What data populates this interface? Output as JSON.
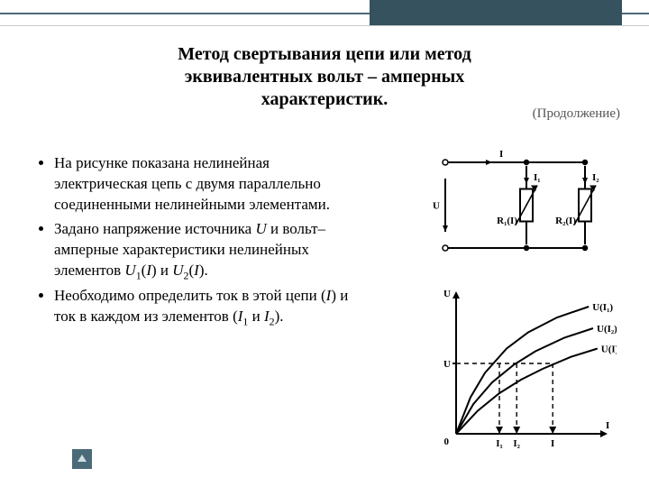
{
  "title_lines": [
    "Метод свертывания цепи или метод",
    "эквивалентных вольт – амперных",
    "характеристик."
  ],
  "continuation": "(Продолжение)",
  "bullets": [
    "На рисунке показана нелинейная электрическая цепь с двумя параллельно соединенными нелинейными элементами.",
    "Задано напряжение источника <i>U</i> и вольт–амперные характеристики нелинейных элементов <i>U</i><sub>1</sub>(<i>I</i>) и <i>U</i><sub>2</sub>(<i>I</i>).",
    "Необходимо определить ток в этой цепи (<i>I</i>) и ток в каждом из элементов (<i>I</i><sub>1</sub>   и   <i>I</i><sub>2</sub>)."
  ],
  "circuit": {
    "labels": {
      "I": "I",
      "I1": "I₁",
      "I2": "I₂",
      "U": "U",
      "R1": "R₁(I)",
      "R2": "R₂(I)"
    },
    "style": {
      "stroke": "#000000",
      "stroke_width": 2,
      "terminal_radius": 3
    }
  },
  "chart": {
    "axis": {
      "x_label": "I",
      "y_label": "U",
      "origin_label": "0"
    },
    "U_level": 0.52,
    "curves": [
      {
        "name": "U(I1)",
        "label": "U(I₁)",
        "points": [
          [
            0,
            0
          ],
          [
            0.1,
            0.27
          ],
          [
            0.2,
            0.45
          ],
          [
            0.35,
            0.63
          ],
          [
            0.5,
            0.75
          ],
          [
            0.7,
            0.86
          ],
          [
            0.92,
            0.94
          ]
        ],
        "I_at_U": 0.3
      },
      {
        "name": "U(I2)",
        "label": "U(I₂)",
        "points": [
          [
            0,
            0
          ],
          [
            0.12,
            0.22
          ],
          [
            0.25,
            0.38
          ],
          [
            0.4,
            0.51
          ],
          [
            0.55,
            0.61
          ],
          [
            0.75,
            0.71
          ],
          [
            0.95,
            0.78
          ]
        ],
        "I_at_U": 0.42
      },
      {
        "name": "U(I)",
        "label": "U(I)",
        "points": [
          [
            0,
            0
          ],
          [
            0.15,
            0.17
          ],
          [
            0.3,
            0.3
          ],
          [
            0.45,
            0.4
          ],
          [
            0.6,
            0.48
          ],
          [
            0.8,
            0.57
          ],
          [
            0.98,
            0.63
          ]
        ],
        "I_at_U": 0.67
      }
    ],
    "tick_labels": [
      "I₁",
      "I₂",
      "I"
    ],
    "style": {
      "stroke": "#000000",
      "stroke_width": 2,
      "dash": "5,4",
      "label_fontsize": 11,
      "label_weight": "bold"
    }
  },
  "colors": {
    "accent": "#4a6a78",
    "accent_dark": "#35525e",
    "rule": "#c9c9c9"
  }
}
